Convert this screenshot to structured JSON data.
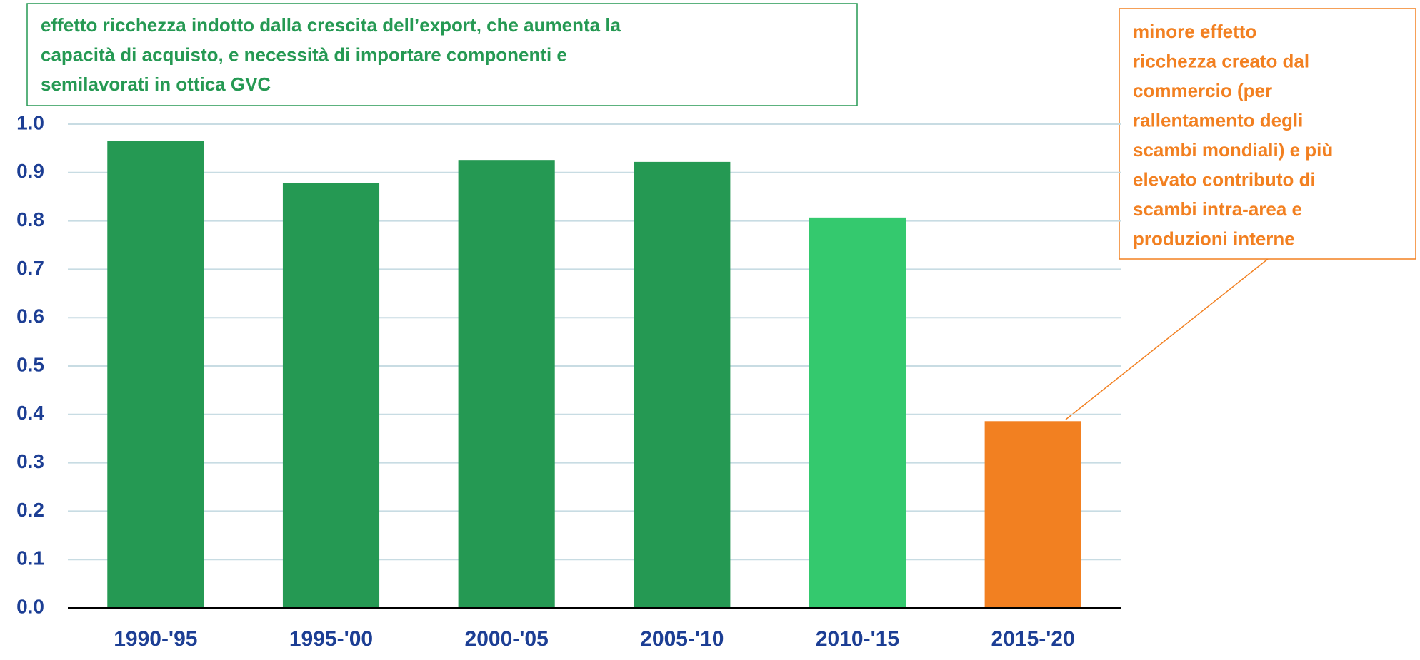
{
  "chart_data": {
    "type": "bar",
    "categories": [
      "1990-'95",
      "1995-'00",
      "2000-'05",
      "2005-'10",
      "2010-'15",
      "2015-'20"
    ],
    "values": [
      0.965,
      0.878,
      0.926,
      0.922,
      0.807,
      0.386
    ],
    "colors": [
      "#259953",
      "#259953",
      "#259953",
      "#259953",
      "#34c96e",
      "#f28021"
    ],
    "ylim": [
      0,
      1
    ],
    "yticks": [
      {
        "value": 0,
        "label": "0.0"
      },
      0.1,
      0.2,
      0.3,
      0.4,
      0.5,
      0.6,
      0.7,
      0.8,
      0.9,
      {
        "value": 1,
        "label": "1.0"
      }
    ],
    "grid": true,
    "annotations": [
      {
        "text": [
          "effetto ricchezza indotto dalla crescita dell’export, che aumenta la",
          "capacità di acquisto, e necessità di importare componenti e",
          "semilavorati in ottica GVC"
        ],
        "color": "#259953"
      },
      {
        "text": [
          "minore effetto",
          "ricchezza creato dal",
          "commercio (per",
          "rallentamento degli",
          "scambi mondiali) e più",
          "elevato contributo di",
          "scambi intra-area e",
          "produzioni interne"
        ],
        "color": "#f28021"
      }
    ]
  }
}
